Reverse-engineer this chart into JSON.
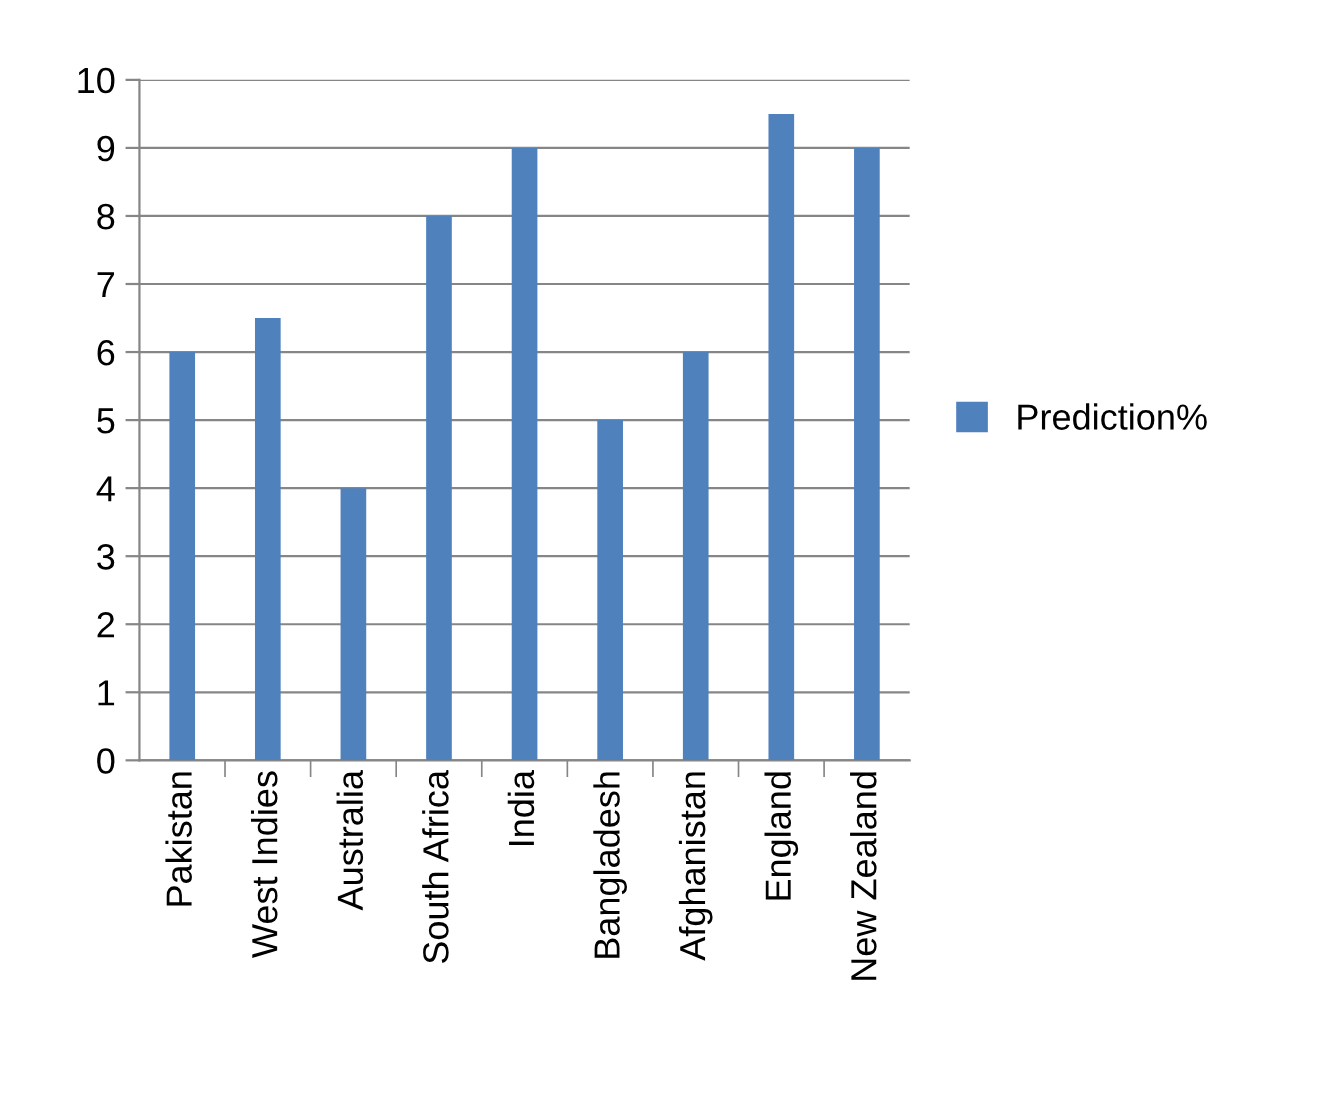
{
  "chart_data": {
    "type": "bar",
    "categories": [
      "Pakistan",
      "West Indies",
      "Australia",
      "South Africa",
      "India",
      "Bangladesh",
      "Afghanistan",
      "England",
      "New Zealand"
    ],
    "series": [
      {
        "name": "Prediction%",
        "color": "#4f81bd",
        "values": [
          6,
          6.5,
          4,
          8,
          9,
          5,
          6,
          9.5,
          9
        ]
      }
    ],
    "ylim": [
      0,
      10
    ],
    "yticks": [
      0,
      1,
      2,
      3,
      4,
      5,
      6,
      7,
      8,
      9,
      10
    ],
    "grid": "y",
    "legend": "right"
  }
}
